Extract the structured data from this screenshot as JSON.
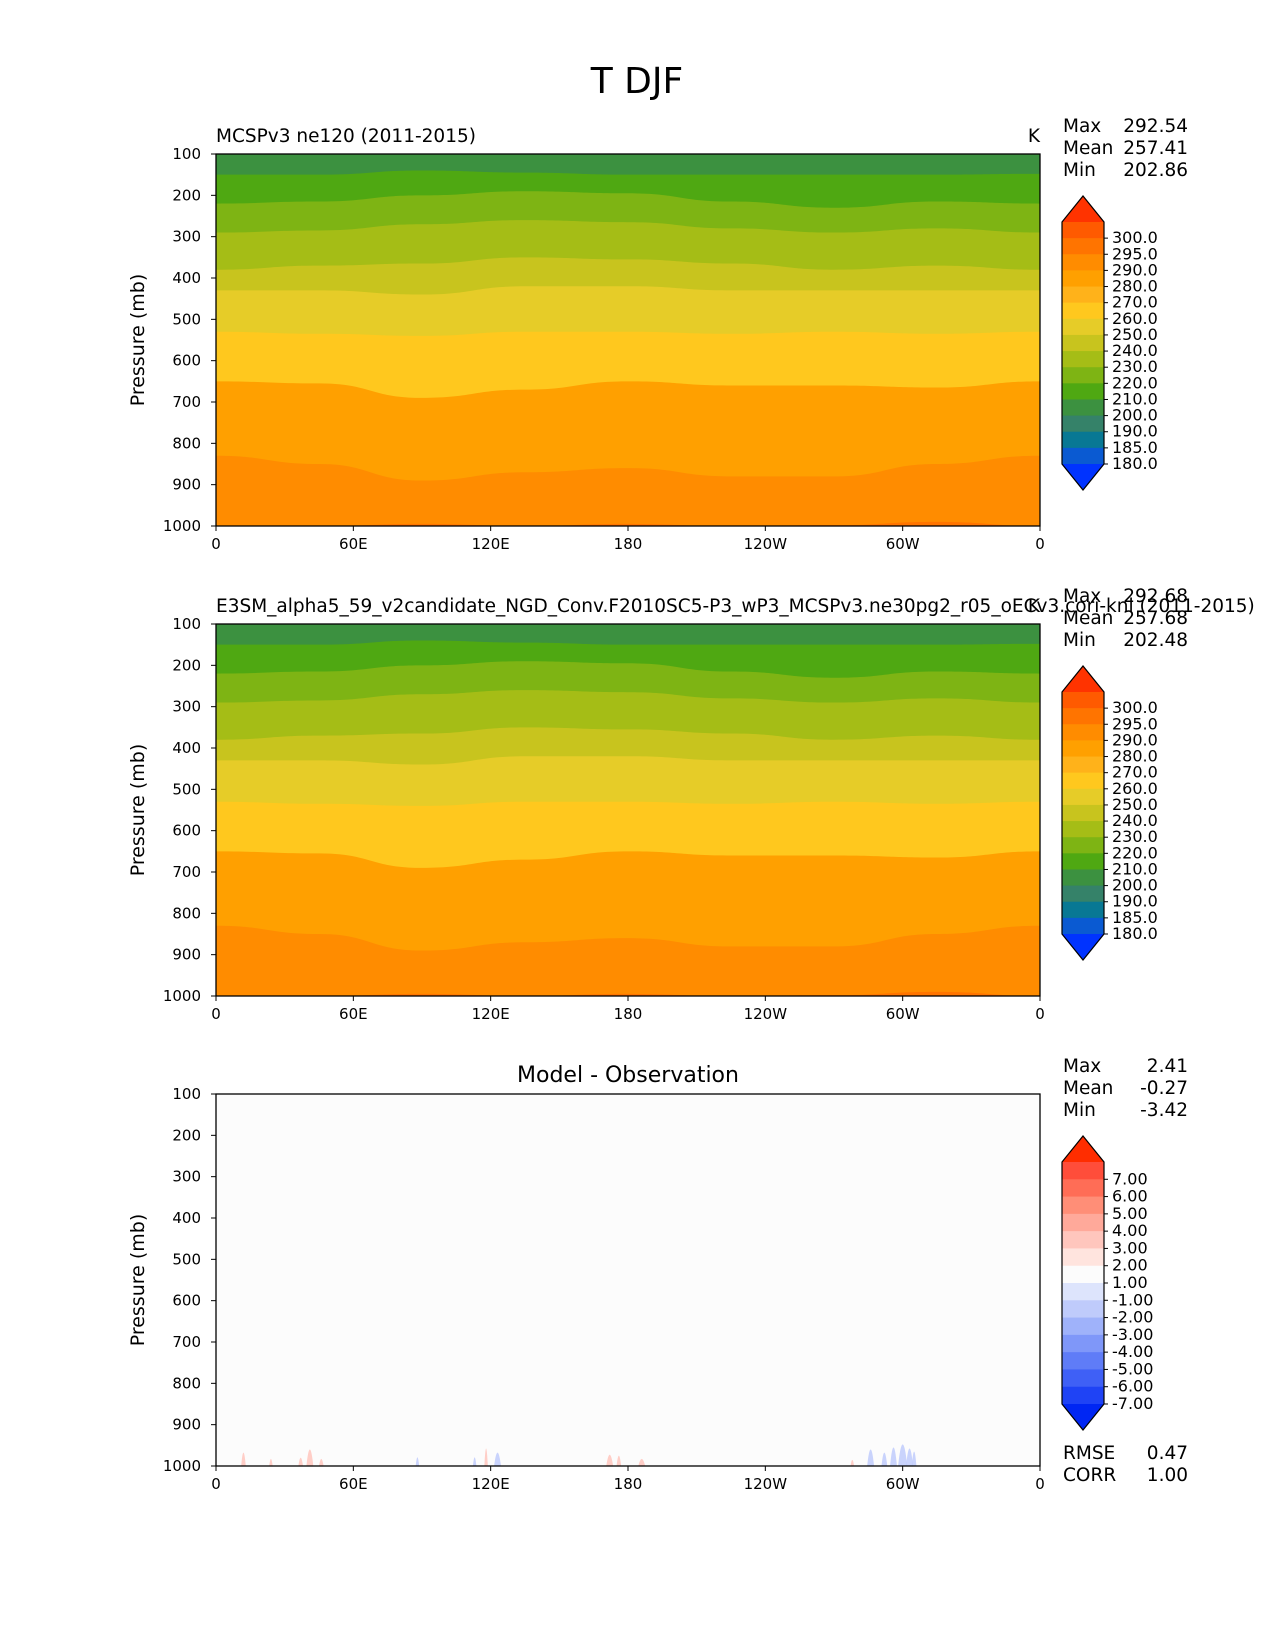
{
  "figure_title": "T DJF",
  "ylabel": "Pressure (mb)",
  "x_ticks": [
    "0",
    "60E",
    "120E",
    "180",
    "120W",
    "60W",
    "0"
  ],
  "y_ticks": [
    "100",
    "200",
    "300",
    "400",
    "500",
    "600",
    "700",
    "800",
    "900",
    "1000"
  ],
  "stat_labels": {
    "max": "Max",
    "mean": "Mean",
    "min": "Min",
    "rmse": "RMSE",
    "corr": "CORR"
  },
  "chart_data": [
    {
      "type": "contourf",
      "panel": "test",
      "title_left": "MCSPv3 ne120 (2011-2015)",
      "units": "K",
      "stats": {
        "max": "292.54",
        "mean": "257.41",
        "min": "202.86"
      },
      "xlabel": "",
      "ylabel": "Pressure (mb)",
      "xlim": [
        0,
        360
      ],
      "ylim": [
        1000,
        100
      ],
      "y_scale": "linear, inverted",
      "colorbar_levels": [
        "300.0",
        "295.0",
        "290.0",
        "280.0",
        "270.0",
        "260.0",
        "250.0",
        "240.0",
        "230.0",
        "220.0",
        "210.0",
        "200.0",
        "190.0",
        "185.0",
        "180.0"
      ],
      "colorbar_colors": [
        "#ff3300",
        "#ff5a00",
        "#ff7400",
        "#ff8c00",
        "#ffa000",
        "#ffb21a",
        "#ffc81e",
        "#e6cc28",
        "#c8c41e",
        "#a5bd16",
        "#7eb414",
        "#4fa812",
        "#3c9140",
        "#358269",
        "#087894",
        "#0a5ad2",
        "#0033ff"
      ],
      "bands": [
        {
          "level": 210,
          "color": "#4fa812",
          "y": [
            150,
            150,
            140,
            145,
            150,
            150,
            150,
            150,
            148
          ]
        },
        {
          "level": 220,
          "color": "#7eb414",
          "y": [
            220,
            215,
            200,
            190,
            195,
            215,
            230,
            215,
            220
          ]
        },
        {
          "level": 230,
          "color": "#a5bd16",
          "y": [
            290,
            285,
            270,
            260,
            265,
            280,
            290,
            280,
            290
          ]
        },
        {
          "level": 240,
          "color": "#c8c41e",
          "y": [
            380,
            370,
            365,
            350,
            355,
            365,
            380,
            370,
            380
          ]
        },
        {
          "level": 250,
          "color": "#e6cc28",
          "y": [
            430,
            430,
            440,
            420,
            420,
            430,
            430,
            430,
            430
          ]
        },
        {
          "level": 260,
          "color": "#ffc81e",
          "y": [
            530,
            535,
            540,
            530,
            530,
            535,
            530,
            535,
            530
          ]
        },
        {
          "level": 270,
          "color": "#ffa000",
          "y": [
            650,
            655,
            690,
            670,
            650,
            660,
            660,
            665,
            650
          ]
        },
        {
          "level": 280,
          "color": "#ff8c00",
          "y": [
            830,
            850,
            890,
            870,
            860,
            880,
            880,
            850,
            830
          ]
        },
        {
          "level": 290,
          "color": "#ff7400",
          "y": [
            1000,
            1000,
            995,
            1000,
            995,
            1000,
            998,
            990,
            1000
          ]
        }
      ],
      "band_lons": [
        0,
        45,
        90,
        135,
        180,
        225,
        270,
        315,
        360
      ],
      "top_color": "#3c9140"
    },
    {
      "type": "contourf",
      "panel": "reference",
      "title_left": "E3SM_alpha5_59_v2candidate_NGD_Conv.F2010SC5-P3_wP3_MCSPv3.ne30pg2_r05_oECv3.cori-knl (2011-2015)",
      "units": "K",
      "stats": {
        "max": "292.68",
        "mean": "257.68",
        "min": "202.48"
      },
      "xlabel": "",
      "ylabel": "Pressure (mb)",
      "xlim": [
        0,
        360
      ],
      "ylim": [
        1000,
        100
      ],
      "y_scale": "linear, inverted",
      "colorbar_levels": [
        "300.0",
        "295.0",
        "290.0",
        "280.0",
        "270.0",
        "260.0",
        "250.0",
        "240.0",
        "230.0",
        "220.0",
        "210.0",
        "200.0",
        "190.0",
        "185.0",
        "180.0"
      ],
      "colorbar_colors": [
        "#ff3300",
        "#ff5a00",
        "#ff7400",
        "#ff8c00",
        "#ffa000",
        "#ffb21a",
        "#ffc81e",
        "#e6cc28",
        "#c8c41e",
        "#a5bd16",
        "#7eb414",
        "#4fa812",
        "#3c9140",
        "#358269",
        "#087894",
        "#0a5ad2",
        "#0033ff"
      ],
      "bands": [
        {
          "level": 210,
          "color": "#4fa812",
          "y": [
            150,
            150,
            140,
            145,
            150,
            150,
            150,
            150,
            148
          ]
        },
        {
          "level": 220,
          "color": "#7eb414",
          "y": [
            220,
            215,
            200,
            190,
            195,
            215,
            230,
            215,
            220
          ]
        },
        {
          "level": 230,
          "color": "#a5bd16",
          "y": [
            290,
            285,
            270,
            260,
            265,
            280,
            290,
            280,
            290
          ]
        },
        {
          "level": 240,
          "color": "#c8c41e",
          "y": [
            380,
            370,
            365,
            350,
            355,
            365,
            380,
            370,
            380
          ]
        },
        {
          "level": 250,
          "color": "#e6cc28",
          "y": [
            430,
            430,
            440,
            420,
            420,
            430,
            430,
            430,
            430
          ]
        },
        {
          "level": 260,
          "color": "#ffc81e",
          "y": [
            530,
            535,
            540,
            530,
            530,
            535,
            530,
            535,
            530
          ]
        },
        {
          "level": 270,
          "color": "#ffa000",
          "y": [
            650,
            655,
            690,
            670,
            650,
            660,
            660,
            665,
            650
          ]
        },
        {
          "level": 280,
          "color": "#ff8c00",
          "y": [
            830,
            850,
            890,
            870,
            860,
            880,
            880,
            850,
            830
          ]
        },
        {
          "level": 290,
          "color": "#ff7400",
          "y": [
            1000,
            1000,
            995,
            1000,
            995,
            1000,
            998,
            990,
            1000
          ]
        }
      ],
      "band_lons": [
        0,
        45,
        90,
        135,
        180,
        225,
        270,
        315,
        360
      ],
      "top_color": "#3c9140"
    },
    {
      "type": "contourf",
      "panel": "difference",
      "title_center": "Model - Observation",
      "stats": {
        "max": "2.41",
        "mean": "-0.27",
        "min": "-3.42"
      },
      "metrics": {
        "rmse": "0.47",
        "corr": "1.00"
      },
      "xlabel": "",
      "ylabel": "Pressure (mb)",
      "xlim": [
        0,
        360
      ],
      "ylim": [
        1000,
        100
      ],
      "y_scale": "linear, inverted",
      "background_color": "#fcfcfc",
      "colorbar_levels": [
        "7.00",
        "6.00",
        "5.00",
        "4.00",
        "3.00",
        "2.00",
        "1.00",
        "-1.00",
        "-2.00",
        "-3.00",
        "-4.00",
        "-5.00",
        "-6.00",
        "-7.00"
      ],
      "colorbar_colors": [
        "#ff2d00",
        "#ff4d3a",
        "#ff6d56",
        "#ff8e77",
        "#ffa99a",
        "#ffc6bd",
        "#ffe4de",
        "#fcfcfc",
        "#dde4fc",
        "#bfcbfb",
        "#9fb2fa",
        "#7f97f9",
        "#5f7cf7",
        "#3f60f6",
        "#1f43f5",
        "#0026f3"
      ],
      "anomalies": [
        {
          "lon": 12,
          "top": 945,
          "width": 2,
          "sign": "+"
        },
        {
          "lon": 24,
          "top": 975,
          "width": 1.5,
          "sign": "+"
        },
        {
          "lon": 37,
          "top": 970,
          "width": 2,
          "sign": "+"
        },
        {
          "lon": 41,
          "top": 930,
          "width": 3,
          "sign": "+"
        },
        {
          "lon": 46,
          "top": 975,
          "width": 2,
          "sign": "+"
        },
        {
          "lon": 88,
          "top": 968,
          "width": 1.5,
          "sign": "-"
        },
        {
          "lon": 113,
          "top": 968,
          "width": 1.5,
          "sign": "-"
        },
        {
          "lon": 118,
          "top": 925,
          "width": 1.5,
          "sign": "+"
        },
        {
          "lon": 123,
          "top": 945,
          "width": 3,
          "sign": "-"
        },
        {
          "lon": 172,
          "top": 955,
          "width": 3,
          "sign": "+"
        },
        {
          "lon": 176,
          "top": 960,
          "width": 2,
          "sign": "+"
        },
        {
          "lon": 186,
          "top": 975,
          "width": 3,
          "sign": "+"
        },
        {
          "lon": 278,
          "top": 980,
          "width": 1.5,
          "sign": "+"
        },
        {
          "lon": 286,
          "top": 930,
          "width": 3,
          "sign": "-"
        },
        {
          "lon": 292,
          "top": 945,
          "width": 2.5,
          "sign": "-"
        },
        {
          "lon": 296,
          "top": 920,
          "width": 3,
          "sign": "-"
        },
        {
          "lon": 300,
          "top": 905,
          "width": 4,
          "sign": "-"
        },
        {
          "lon": 303,
          "top": 925,
          "width": 3,
          "sign": "-"
        },
        {
          "lon": 305,
          "top": 940,
          "width": 2,
          "sign": "-"
        }
      ]
    }
  ]
}
